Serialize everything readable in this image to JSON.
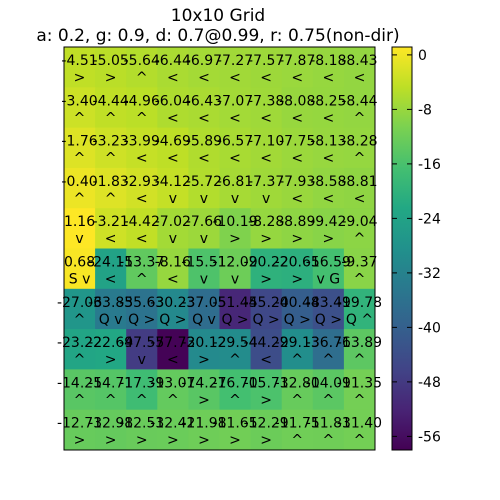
{
  "chart_data": {
    "type": "heatmap",
    "title": "10x10 Grid",
    "subtitle": "a: 0.2, g: 0.9, d: 0.7@0.99, r: 0.75(non-dir)",
    "rows": 10,
    "cols": 10,
    "values": [
      [
        -4.51,
        -5.05,
        -5.64,
        -6.44,
        -6.97,
        -7.27,
        -7.57,
        -7.87,
        -8.18,
        -8.43
      ],
      [
        -3.4,
        -4.44,
        -4.96,
        -6.04,
        -6.43,
        -7.07,
        -7.38,
        -8.08,
        -8.25,
        -8.44
      ],
      [
        -1.76,
        -3.23,
        -3.99,
        -4.69,
        -5.89,
        -6.57,
        -7.1,
        -7.75,
        -8.13,
        -8.28
      ],
      [
        -0.4,
        -1.83,
        -2.93,
        -4.12,
        -5.72,
        -6.81,
        -7.37,
        -7.93,
        -8.58,
        -8.81
      ],
      [
        1.16,
        -3.21,
        -4.42,
        -7.02,
        -7.66,
        -10.19,
        -8.28,
        -8.89,
        -9.42,
        -9.04
      ],
      [
        0.68,
        -24.15,
        -13.37,
        -8.16,
        -15.51,
        -12.09,
        -20.22,
        -20.65,
        -16.59,
        -9.37
      ],
      [
        -27.06,
        -33.85,
        -35.63,
        -30.23,
        -37.05,
        -51.45,
        -45.2,
        -40.48,
        -43.49,
        -19.78
      ],
      [
        -23.22,
        -22.69,
        -47.57,
        -57.72,
        -30.12,
        -29.54,
        -44.29,
        -29.13,
        -36.76,
        -13.89
      ],
      [
        -14.25,
        -14.71,
        -17.39,
        -13.07,
        -14.27,
        -16.7,
        -15.73,
        -12.8,
        -14.09,
        -11.35
      ],
      [
        -12.73,
        -12.98,
        -12.53,
        -12.42,
        -11.98,
        -11.65,
        -12.29,
        -11.75,
        -11.83,
        -11.4
      ]
    ],
    "labels": [
      [
        ">",
        ">",
        "^",
        "<",
        "<",
        "<",
        "<",
        "<",
        "<",
        "<"
      ],
      [
        "^",
        "^",
        "^",
        "<",
        "<",
        "<",
        "<",
        "<",
        "<",
        "^"
      ],
      [
        "^",
        "^",
        "<",
        "<",
        "<",
        "<",
        "<",
        "<",
        "<",
        "^"
      ],
      [
        "^",
        "^",
        "<",
        "v",
        "v",
        "v",
        "v",
        "<",
        "<",
        "<"
      ],
      [
        "v",
        "<",
        "<",
        "v",
        "v",
        ">",
        ">",
        ">",
        ">",
        "^"
      ],
      [
        "S v",
        "<",
        "^",
        "<",
        "v",
        "v",
        ">",
        ">",
        "v G",
        "^"
      ],
      [
        "^",
        "Q v",
        "Q >",
        "Q >",
        "Q v",
        "Q >",
        "Q >",
        "Q >",
        "Q >",
        "Q ^"
      ],
      [
        "^",
        ">",
        "v",
        "<",
        ">",
        "^",
        "<",
        "^",
        "^",
        "^"
      ],
      [
        "^",
        "^",
        "^",
        "^",
        ">",
        "^",
        ">",
        "^",
        "^",
        "^"
      ],
      [
        ">",
        ">",
        ">",
        ">",
        ">",
        ">",
        ">",
        "^",
        "^",
        "^"
      ]
    ],
    "colorbar": {
      "min": -58,
      "max": 1.16,
      "ticks": [
        0,
        -8,
        -16,
        -24,
        -32,
        -40,
        -48,
        -56
      ]
    },
    "colormap": "viridis"
  }
}
